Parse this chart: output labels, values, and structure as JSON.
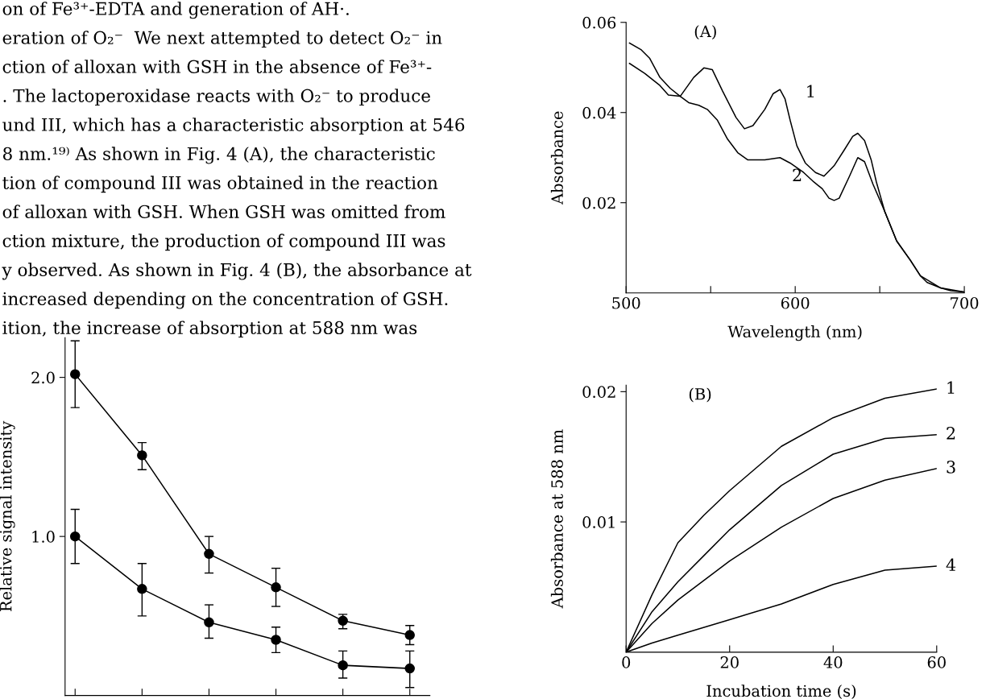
{
  "chart_data": [
    {
      "type": "other",
      "annotations": [
        "on of Fe³⁺-EDTA and generation of AH·.",
        "eration of O₂⁻  We next attempted to detect O₂⁻ in",
        "ction of alloxan with GSH in the absence of Fe³⁺-",
        ". The lactoperoxidase reacts with O₂⁻ to produce",
        "und III, which has a characteristic absorption at 546",
        "8 nm.¹⁹⁾ As shown in Fig. 4 (A), the characteristic",
        "tion of compound III was obtained in the reaction",
        "of alloxan with GSH. When GSH was omitted from",
        "ction mixture, the production of compound III was",
        "y observed. As shown in Fig. 4 (B), the absorbance at",
        "increased depending on the concentration of GSH.",
        "ition, the increase of absorption at 588 nm was"
      ]
    },
    {
      "type": "line",
      "ylabel": "Relative signal intensity",
      "categories": [
        null,
        null,
        null,
        null,
        null,
        null
      ],
      "ylim": [
        0,
        2.25
      ],
      "yticks": [
        {
          "value": 1.0,
          "label": "1.0"
        },
        {
          "value": 2.0,
          "label": "2.0"
        }
      ],
      "tick_labels": "y",
      "marker": "circle",
      "grid": false,
      "legend": false,
      "series": [
        {
          "color": "#000000",
          "values": [
            2.02,
            1.51,
            0.89,
            0.68,
            0.47,
            0.38
          ],
          "errors": [
            [
              1.81,
              2.23
            ],
            [
              1.42,
              1.59
            ],
            [
              0.77,
              1.0
            ],
            [
              0.56,
              0.8
            ],
            [
              0.42,
              0.51
            ],
            [
              0.32,
              0.44
            ]
          ]
        },
        {
          "color": "#000000",
          "values": [
            1.0,
            0.67,
            0.46,
            0.35,
            0.19,
            0.17
          ],
          "errors": [
            [
              0.83,
              1.17
            ],
            [
              0.5,
              0.83
            ],
            [
              0.36,
              0.57
            ],
            [
              0.27,
              0.43
            ],
            [
              0.11,
              0.28
            ],
            [
              0.05,
              0.28
            ]
          ]
        }
      ]
    },
    {
      "type": "line",
      "title": "(A)",
      "xlabel": "Wavelength (nm)",
      "ylabel": "Absorbance",
      "xlim": [
        500,
        700
      ],
      "ylim": [
        0,
        0.06
      ],
      "xticks": [
        500,
        {
          "value": 550,
          "label": null
        },
        600,
        {
          "value": 650,
          "label": null
        },
        700
      ],
      "yticks": [
        0.02,
        0.04,
        0.06
      ],
      "grid": false,
      "legend": false,
      "series": [
        {
          "color": "#000000",
          "x": [
            502,
            509,
            514,
            520,
            526,
            532,
            540,
            546,
            551,
            557,
            565,
            570,
            575,
            582,
            587,
            591,
            594,
            597,
            601,
            606,
            612,
            617,
            623,
            629,
            634,
            637,
            641,
            645,
            648,
            653,
            660,
            668,
            674,
            678,
            686,
            692,
            700
          ],
          "values": [
            0.0554,
            0.0539,
            0.052,
            0.0478,
            0.0454,
            0.0436,
            0.0478,
            0.0499,
            0.0495,
            0.0448,
            0.0389,
            0.0364,
            0.0371,
            0.0407,
            0.0442,
            0.0451,
            0.043,
            0.0383,
            0.0326,
            0.0288,
            0.0267,
            0.0259,
            0.0282,
            0.0317,
            0.0347,
            0.0354,
            0.0338,
            0.0294,
            0.0246,
            0.018,
            0.0115,
            0.0073,
            0.0038,
            0.0023,
            0.0011,
            0.0005,
            0.0002
          ]
        },
        {
          "color": "#000000",
          "x": [
            502,
            511,
            520,
            525,
            532,
            537,
            543,
            548,
            554,
            560,
            566,
            572,
            582,
            591,
            597,
            605,
            611,
            616,
            620,
            623,
            626,
            632,
            637,
            641,
            646,
            651,
            653,
            660,
            668,
            674,
            686,
            700
          ],
          "values": [
            0.0509,
            0.0487,
            0.046,
            0.0439,
            0.0436,
            0.0422,
            0.0416,
            0.0407,
            0.0383,
            0.0341,
            0.0311,
            0.0295,
            0.0295,
            0.03,
            0.0288,
            0.0267,
            0.0246,
            0.0231,
            0.021,
            0.0205,
            0.021,
            0.0258,
            0.03,
            0.0291,
            0.0241,
            0.0198,
            0.018,
            0.0115,
            0.0073,
            0.0038,
            0.0011,
            0.0002
          ]
        }
      ],
      "annotations": [
        "1",
        "2"
      ]
    },
    {
      "type": "line",
      "title": "(B)",
      "xlabel": "Incubation time (s)",
      "ylabel": "Absorbance at 588 nm",
      "xlim": [
        0,
        60
      ],
      "ylim": [
        0,
        0.0205
      ],
      "xticks": [
        0,
        20,
        40,
        60
      ],
      "yticks": [
        0.01,
        0.02
      ],
      "grid": false,
      "legend": false,
      "series": [
        {
          "name": "1",
          "color": "#000000",
          "x": [
            0,
            5,
            10,
            15,
            20,
            30,
            40,
            50,
            60
          ],
          "values": [
            0,
            0.0044,
            0.0084,
            0.0105,
            0.0124,
            0.0158,
            0.018,
            0.0195,
            0.0202
          ]
        },
        {
          "name": "2",
          "color": "#000000",
          "x": [
            0,
            5,
            10,
            15,
            20,
            30,
            40,
            50,
            60
          ],
          "values": [
            0,
            0.0031,
            0.0054,
            0.0074,
            0.0094,
            0.0128,
            0.0152,
            0.0164,
            0.0167
          ]
        },
        {
          "name": "3",
          "color": "#000000",
          "x": [
            0,
            5,
            10,
            15,
            20,
            30,
            40,
            50,
            60
          ],
          "values": [
            0,
            0.0022,
            0.004,
            0.0055,
            0.007,
            0.0096,
            0.0118,
            0.0132,
            0.0141
          ]
        },
        {
          "name": "4",
          "color": "#000000",
          "x": [
            0,
            5,
            10,
            20,
            30,
            40,
            50,
            60
          ],
          "values": [
            0,
            0.0007,
            0.0013,
            0.0025,
            0.0037,
            0.0052,
            0.0063,
            0.0066
          ]
        }
      ]
    }
  ]
}
